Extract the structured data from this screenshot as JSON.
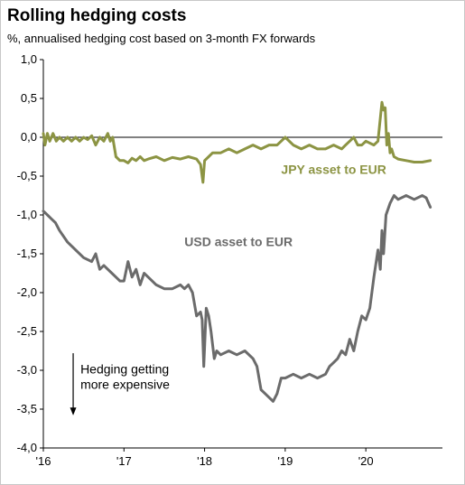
{
  "title": "Rolling hedging costs",
  "subtitle": "%, annualised hedging cost based on 3-month FX forwards",
  "chart_data": {
    "type": "line",
    "title": "Rolling hedging costs",
    "subtitle": "%, annualised hedging cost based on 3-month FX forwards",
    "xlabel": "",
    "ylabel": "",
    "xlim": [
      2016.0,
      2020.95
    ],
    "ylim": [
      -4.0,
      1.0
    ],
    "y_ticks": [
      1.0,
      0.5,
      0.0,
      -0.5,
      -1.0,
      -1.5,
      -2.0,
      -2.5,
      -3.0,
      -3.5,
      -4.0
    ],
    "y_tick_labels": [
      "1,0",
      "0,5",
      "0,0",
      "-0,5",
      "-1,0",
      "-1,5",
      "-2,0",
      "-2,5",
      "-3,0",
      "-3,5",
      "-4,0"
    ],
    "x_ticks": [
      2016,
      2017,
      2018,
      2019,
      2020
    ],
    "x_tick_labels": [
      "'16",
      "'17",
      "'18",
      "'19",
      "'20"
    ],
    "grid": false,
    "legend": "inline labels",
    "annotation": {
      "lines": [
        "Hedging getting",
        "more expensive"
      ],
      "arrow": "down"
    },
    "series": [
      {
        "name": "JPY asset to EUR",
        "color": "#8c9443",
        "x": [
          2016.0,
          2016.02,
          2016.05,
          2016.08,
          2016.12,
          2016.16,
          2016.2,
          2016.25,
          2016.3,
          2016.35,
          2016.4,
          2016.45,
          2016.5,
          2016.55,
          2016.6,
          2016.65,
          2016.7,
          2016.75,
          2016.8,
          2016.83,
          2016.86,
          2016.9,
          2016.95,
          2017.0,
          2017.05,
          2017.1,
          2017.15,
          2017.2,
          2017.25,
          2017.3,
          2017.4,
          2017.5,
          2017.6,
          2017.7,
          2017.8,
          2017.9,
          2017.95,
          2017.98,
          2018.0,
          2018.05,
          2018.1,
          2018.2,
          2018.3,
          2018.4,
          2018.5,
          2018.6,
          2018.7,
          2018.8,
          2018.9,
          2018.95,
          2019.0,
          2019.1,
          2019.2,
          2019.3,
          2019.4,
          2019.5,
          2019.6,
          2019.7,
          2019.75,
          2019.8,
          2019.85,
          2019.9,
          2019.95,
          2020.0,
          2020.1,
          2020.15,
          2020.2,
          2020.22,
          2020.24,
          2020.26,
          2020.28,
          2020.3,
          2020.32,
          2020.35,
          2020.4,
          2020.5,
          2020.6,
          2020.7,
          2020.8
        ],
        "values": [
          0.05,
          -0.1,
          0.05,
          -0.05,
          0.05,
          -0.05,
          0.0,
          -0.05,
          0.0,
          -0.05,
          0.0,
          -0.05,
          0.0,
          -0.03,
          0.02,
          -0.1,
          0.0,
          -0.05,
          0.05,
          -0.05,
          0.0,
          -0.25,
          -0.3,
          -0.3,
          -0.33,
          -0.27,
          -0.3,
          -0.25,
          -0.3,
          -0.28,
          -0.25,
          -0.3,
          -0.26,
          -0.28,
          -0.25,
          -0.28,
          -0.35,
          -0.58,
          -0.3,
          -0.25,
          -0.2,
          -0.2,
          -0.15,
          -0.2,
          -0.15,
          -0.1,
          -0.15,
          -0.1,
          -0.1,
          -0.05,
          0.0,
          -0.1,
          -0.15,
          -0.1,
          -0.15,
          -0.15,
          -0.1,
          -0.15,
          -0.1,
          -0.05,
          0.0,
          -0.1,
          -0.1,
          -0.05,
          -0.1,
          -0.05,
          0.45,
          0.35,
          0.38,
          -0.1,
          0.05,
          -0.2,
          -0.15,
          -0.25,
          -0.28,
          -0.3,
          -0.32,
          -0.32,
          -0.3
        ]
      },
      {
        "name": "USD asset to EUR",
        "color": "#6b6b6b",
        "x": [
          2016.0,
          2016.05,
          2016.1,
          2016.15,
          2016.2,
          2016.3,
          2016.4,
          2016.5,
          2016.6,
          2016.65,
          2016.7,
          2016.75,
          2016.8,
          2016.85,
          2016.9,
          2016.95,
          2017.0,
          2017.05,
          2017.1,
          2017.15,
          2017.2,
          2017.25,
          2017.3,
          2017.35,
          2017.4,
          2017.5,
          2017.6,
          2017.7,
          2017.75,
          2017.8,
          2017.85,
          2017.9,
          2017.95,
          2017.97,
          2017.99,
          2018.02,
          2018.05,
          2018.08,
          2018.12,
          2018.15,
          2018.2,
          2018.3,
          2018.4,
          2018.5,
          2018.6,
          2018.65,
          2018.7,
          2018.75,
          2018.8,
          2018.85,
          2018.9,
          2018.95,
          2019.0,
          2019.1,
          2019.2,
          2019.3,
          2019.4,
          2019.5,
          2019.55,
          2019.6,
          2019.65,
          2019.7,
          2019.75,
          2019.8,
          2019.85,
          2019.9,
          2019.95,
          2020.0,
          2020.05,
          2020.1,
          2020.15,
          2020.18,
          2020.2,
          2020.22,
          2020.25,
          2020.3,
          2020.35,
          2020.4,
          2020.5,
          2020.6,
          2020.7,
          2020.75,
          2020.8
        ],
        "values": [
          -0.95,
          -1.0,
          -1.05,
          -1.1,
          -1.2,
          -1.35,
          -1.45,
          -1.55,
          -1.6,
          -1.5,
          -1.7,
          -1.65,
          -1.7,
          -1.75,
          -1.8,
          -1.85,
          -1.85,
          -1.6,
          -1.8,
          -1.7,
          -1.9,
          -1.75,
          -1.8,
          -1.85,
          -1.9,
          -1.95,
          -1.95,
          -1.9,
          -1.95,
          -1.9,
          -2.0,
          -2.3,
          -2.25,
          -2.35,
          -2.95,
          -2.2,
          -2.3,
          -2.5,
          -2.85,
          -2.75,
          -2.8,
          -2.75,
          -2.8,
          -2.75,
          -2.85,
          -2.95,
          -3.25,
          -3.3,
          -3.35,
          -3.4,
          -3.3,
          -3.1,
          -3.1,
          -3.05,
          -3.1,
          -3.05,
          -3.1,
          -3.05,
          -2.95,
          -2.9,
          -2.85,
          -2.75,
          -2.8,
          -2.6,
          -2.75,
          -2.5,
          -2.3,
          -2.35,
          -2.2,
          -1.8,
          -1.45,
          -1.7,
          -1.2,
          -1.5,
          -1.0,
          -0.85,
          -0.75,
          -0.8,
          -0.75,
          -0.8,
          -0.75,
          -0.78,
          -0.9
        ]
      }
    ]
  }
}
